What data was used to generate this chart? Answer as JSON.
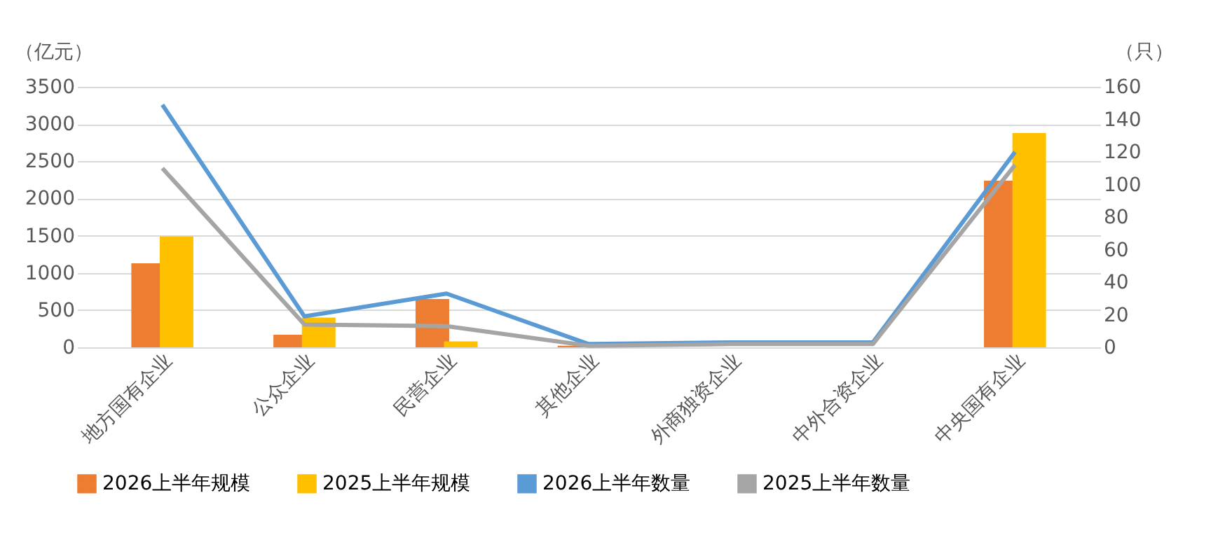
{
  "chart_data": {
    "type": "bar",
    "ylabel": "（亿元）",
    "y2label": "（只）",
    "categories": [
      "地方国有企业",
      "公众企业",
      "民营企业",
      "其他企业",
      "外商独资企业",
      "中外合资企业",
      "中央国有企业"
    ],
    "series": [
      {
        "name": "2026上半年规模",
        "color": "#ed7d31",
        "values": [
          1130,
          170,
          650,
          20,
          0,
          0,
          2240
        ]
      },
      {
        "name": "2025上半年规模",
        "color": "#ffc000",
        "values": [
          1490,
          400,
          80,
          0,
          0,
          0,
          2880
        ]
      },
      {
        "name": "2026上半年数量",
        "type": "line",
        "axis": "y2",
        "color": "#5b9bd5",
        "values": [
          149,
          19,
          33,
          2,
          3,
          3,
          120
        ]
      },
      {
        "name": "2025上半年数量",
        "type": "line",
        "axis": "y2",
        "color": "#a5a5a5",
        "values": [
          110,
          14,
          13,
          1,
          2,
          2,
          112
        ]
      }
    ],
    "ylim": [
      0,
      3500
    ],
    "yticks": [
      0,
      500,
      1000,
      1500,
      2000,
      2500,
      3000,
      3500
    ],
    "y2lim": [
      0,
      160
    ],
    "y2ticks": [
      0,
      20,
      40,
      60,
      80,
      100,
      120,
      140,
      160
    ],
    "grid": "y",
    "legend": "bottom",
    "line_style": "solid",
    "marker": "none"
  }
}
